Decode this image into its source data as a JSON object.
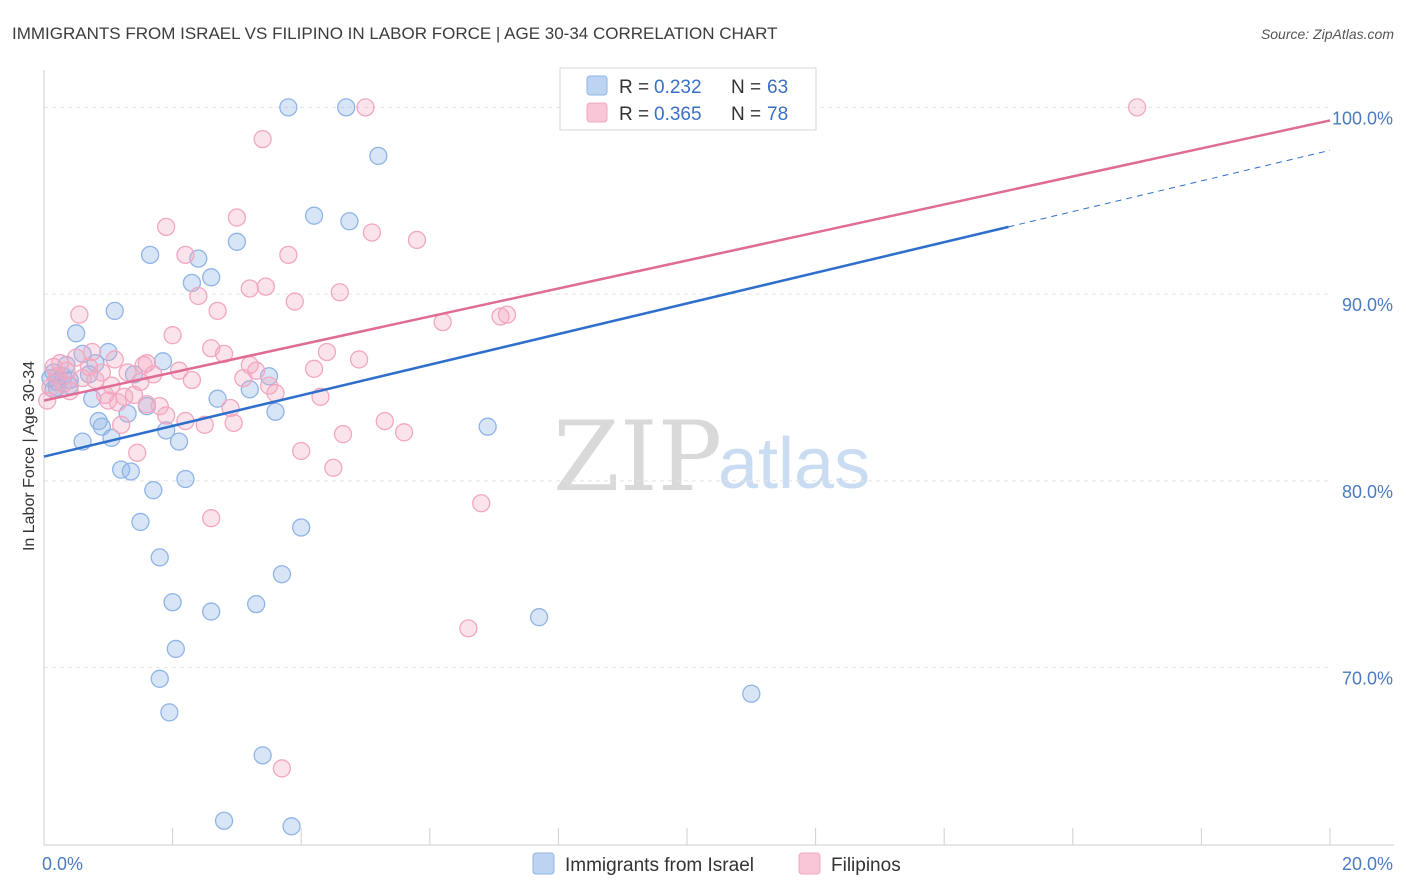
{
  "chart_data": {
    "type": "scatter",
    "title": "IMMIGRANTS FROM ISRAEL VS FILIPINO IN LABOR FORCE | AGE 30-34 CORRELATION CHART",
    "source": "Source: ZipAtlas.com",
    "xlabel": "",
    "ylabel": "In Labor Force | Age 30-34",
    "xlim": [
      0,
      20
    ],
    "ylim": [
      60.5,
      102
    ],
    "x_tick_labels": [
      {
        "value": 0,
        "label": "0.0%"
      },
      {
        "value": 20,
        "label": "20.0%"
      }
    ],
    "y_tick_labels": [
      {
        "value": 100,
        "label": "100.0%"
      },
      {
        "value": 90,
        "label": "90.0%"
      },
      {
        "value": 80,
        "label": "80.0%"
      },
      {
        "value": 70,
        "label": "70.0%"
      }
    ],
    "legend": {
      "series1": {
        "r_label": "R = ",
        "r_value": "0.232",
        "n_label": "N = ",
        "n_value": "63"
      },
      "series2": {
        "r_label": "R = ",
        "r_value": "0.365",
        "n_label": "N = ",
        "n_value": "78"
      }
    },
    "watermark": {
      "zip": "ZIP",
      "atlas": "atlas"
    },
    "series": [
      {
        "name": "Immigrants from Israel",
        "color": "#8fb4e6",
        "line_color": "#2f6fcc",
        "trend": {
          "x0": 0,
          "y0": 81.3,
          "x1": 15.0,
          "y1": 93.6,
          "dash_x1": 20.0,
          "dash_y1": 97.7
        },
        "points": [
          [
            0.1,
            85.5
          ],
          [
            0.15,
            84.9
          ],
          [
            0.2,
            85.3
          ],
          [
            0.3,
            85.6
          ],
          [
            0.35,
            86.2
          ],
          [
            0.4,
            85.1
          ],
          [
            0.5,
            87.9
          ],
          [
            0.6,
            86.8
          ],
          [
            0.7,
            85.7
          ],
          [
            0.75,
            84.4
          ],
          [
            0.8,
            86.3
          ],
          [
            0.85,
            83.2
          ],
          [
            0.9,
            82.9
          ],
          [
            0.6,
            82.1
          ],
          [
            1.0,
            86.9
          ],
          [
            1.05,
            82.3
          ],
          [
            1.1,
            89.1
          ],
          [
            1.2,
            80.6
          ],
          [
            1.3,
            83.6
          ],
          [
            1.35,
            80.5
          ],
          [
            1.4,
            85.7
          ],
          [
            1.5,
            77.8
          ],
          [
            1.6,
            84.0
          ],
          [
            1.65,
            92.1
          ],
          [
            1.7,
            79.5
          ],
          [
            1.8,
            75.9
          ],
          [
            1.85,
            86.4
          ],
          [
            1.9,
            82.7
          ],
          [
            2.0,
            73.5
          ],
          [
            2.05,
            71.0
          ],
          [
            2.1,
            82.1
          ],
          [
            2.2,
            80.1
          ],
          [
            2.3,
            90.6
          ],
          [
            2.4,
            91.9
          ],
          [
            2.6,
            90.9
          ],
          [
            2.6,
            73.0
          ],
          [
            2.7,
            84.4
          ],
          [
            2.8,
            61.8
          ],
          [
            3.0,
            92.8
          ],
          [
            3.2,
            84.9
          ],
          [
            3.3,
            73.4
          ],
          [
            3.4,
            65.3
          ],
          [
            3.5,
            85.6
          ],
          [
            3.6,
            83.7
          ],
          [
            3.7,
            75.0
          ],
          [
            3.8,
            100.0
          ],
          [
            3.85,
            61.5
          ],
          [
            4.0,
            77.5
          ],
          [
            4.2,
            94.2
          ],
          [
            4.7,
            100.0
          ],
          [
            4.75,
            93.9
          ],
          [
            5.2,
            97.4
          ],
          [
            1.8,
            69.4
          ],
          [
            1.95,
            67.6
          ],
          [
            6.9,
            82.9
          ],
          [
            7.7,
            72.7
          ],
          [
            8.7,
            100.0
          ],
          [
            9.4,
            100.0
          ],
          [
            10.0,
            100.0
          ],
          [
            11.0,
            68.6
          ],
          [
            0.4,
            85.4
          ],
          [
            0.2,
            85.0
          ],
          [
            0.15,
            85.8
          ]
        ]
      },
      {
        "name": "Filipinos",
        "color": "#f2a7c0",
        "line_color": "#e06b95",
        "trend": {
          "x0": 0,
          "y0": 84.3,
          "x1": 20.0,
          "y1": 99.3
        },
        "points": [
          [
            0.05,
            84.3
          ],
          [
            0.1,
            85.0
          ],
          [
            0.15,
            86.1
          ],
          [
            0.2,
            85.6
          ],
          [
            0.25,
            86.3
          ],
          [
            0.3,
            85.2
          ],
          [
            0.35,
            85.9
          ],
          [
            0.4,
            84.8
          ],
          [
            0.5,
            86.6
          ],
          [
            0.55,
            88.9
          ],
          [
            0.6,
            85.5
          ],
          [
            0.7,
            86.1
          ],
          [
            0.75,
            86.9
          ],
          [
            0.8,
            85.4
          ],
          [
            0.9,
            85.8
          ],
          [
            0.95,
            84.6
          ],
          [
            1.0,
            84.3
          ],
          [
            1.05,
            85.1
          ],
          [
            1.1,
            86.5
          ],
          [
            1.15,
            84.2
          ],
          [
            1.2,
            83.0
          ],
          [
            1.25,
            84.5
          ],
          [
            1.3,
            85.8
          ],
          [
            1.4,
            84.6
          ],
          [
            1.45,
            81.5
          ],
          [
            1.5,
            85.3
          ],
          [
            1.55,
            86.2
          ],
          [
            1.6,
            84.1
          ],
          [
            1.7,
            85.7
          ],
          [
            1.8,
            84.0
          ],
          [
            1.9,
            83.5
          ],
          [
            1.9,
            93.6
          ],
          [
            2.0,
            87.8
          ],
          [
            2.1,
            85.9
          ],
          [
            2.2,
            83.2
          ],
          [
            2.2,
            92.1
          ],
          [
            2.3,
            85.4
          ],
          [
            2.4,
            89.9
          ],
          [
            2.5,
            83.0
          ],
          [
            2.6,
            87.1
          ],
          [
            2.6,
            78.0
          ],
          [
            2.7,
            89.1
          ],
          [
            2.8,
            86.8
          ],
          [
            2.9,
            83.9
          ],
          [
            2.95,
            83.1
          ],
          [
            3.0,
            94.1
          ],
          [
            3.1,
            85.5
          ],
          [
            3.2,
            86.2
          ],
          [
            3.2,
            90.3
          ],
          [
            3.3,
            85.9
          ],
          [
            3.4,
            98.3
          ],
          [
            3.45,
            90.4
          ],
          [
            3.5,
            85.1
          ],
          [
            3.6,
            84.7
          ],
          [
            3.7,
            64.6
          ],
          [
            3.8,
            92.1
          ],
          [
            3.9,
            89.6
          ],
          [
            4.0,
            81.6
          ],
          [
            4.2,
            86.0
          ],
          [
            4.3,
            84.5
          ],
          [
            4.4,
            86.9
          ],
          [
            4.5,
            80.7
          ],
          [
            4.6,
            90.1
          ],
          [
            4.65,
            82.5
          ],
          [
            4.9,
            86.5
          ],
          [
            5.0,
            100.0
          ],
          [
            5.1,
            93.3
          ],
          [
            5.3,
            83.2
          ],
          [
            5.6,
            82.6
          ],
          [
            5.8,
            92.9
          ],
          [
            6.2,
            88.5
          ],
          [
            6.6,
            72.1
          ],
          [
            6.8,
            78.8
          ],
          [
            7.1,
            88.8
          ],
          [
            7.2,
            88.9
          ],
          [
            8.6,
            100.0
          ],
          [
            17.0,
            100.0
          ],
          [
            1.6,
            86.3
          ]
        ]
      }
    ]
  }
}
